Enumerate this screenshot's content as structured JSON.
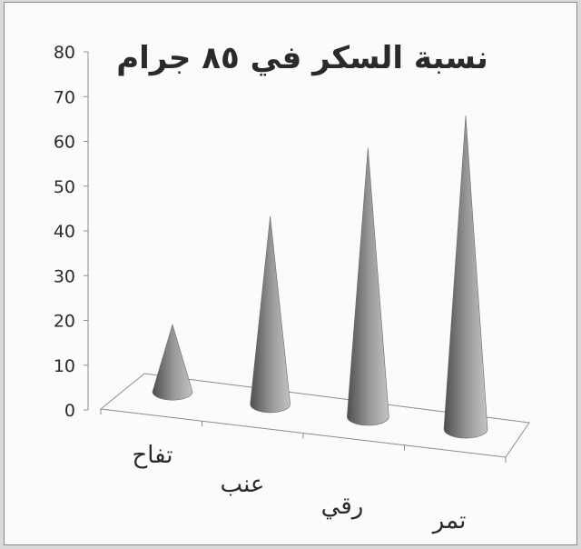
{
  "chart_data": {
    "type": "bar",
    "bar_shape": "3d-cone",
    "title": "نسبة السكر في ٨٥ جرام",
    "xlabel": "",
    "ylabel": "",
    "categories": [
      "تفاح",
      "عنب",
      "رقي",
      "تمر"
    ],
    "values": [
      15,
      42,
      60,
      70
    ],
    "ylim": [
      0,
      80
    ],
    "yticks": [
      0,
      10,
      20,
      30,
      40,
      50,
      60,
      70,
      80
    ],
    "grid": false,
    "legend": "none",
    "colors": {
      "cone_dark": "#4e4e4e",
      "cone_mid": "#9a9a9a",
      "cone_light": "#c4c4c4",
      "axis": "#8c8c8c",
      "text": "#2a2a2a"
    }
  }
}
